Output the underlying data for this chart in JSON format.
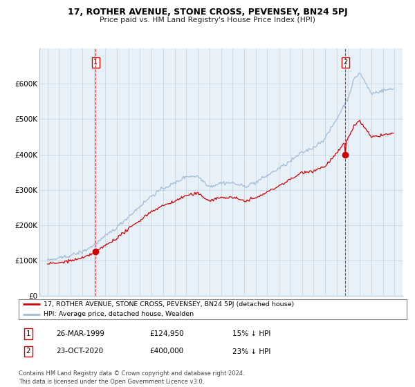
{
  "title": "17, ROTHER AVENUE, STONE CROSS, PEVENSEY, BN24 5PJ",
  "subtitle": "Price paid vs. HM Land Registry's House Price Index (HPI)",
  "legend_line1": "17, ROTHER AVENUE, STONE CROSS, PEVENSEY, BN24 5PJ (detached house)",
  "legend_line2": "HPI: Average price, detached house, Wealden",
  "sale1_label": "1",
  "sale1_date": "26-MAR-1999",
  "sale1_price": "£124,950",
  "sale1_hpi": "15% ↓ HPI",
  "sale2_label": "2",
  "sale2_date": "23-OCT-2020",
  "sale2_price": "£400,000",
  "sale2_hpi": "23% ↓ HPI",
  "footnote": "Contains HM Land Registry data © Crown copyright and database right 2024.\nThis data is licensed under the Open Government Licence v3.0.",
  "hpi_color": "#a0bcd8",
  "price_color": "#cc0000",
  "marker_color": "#cc0000",
  "background_color": "#ffffff",
  "plot_bg_color": "#e8f0f8",
  "grid_color": "#b0c4d8",
  "ylim": [
    0,
    700000
  ],
  "yticks": [
    0,
    100000,
    200000,
    300000,
    400000,
    500000,
    600000
  ],
  "ytick_labels": [
    "£0",
    "£100K",
    "£200K",
    "£300K",
    "£400K",
    "£500K",
    "£600K"
  ],
  "year_start": 1995,
  "year_end": 2025,
  "sale1_year": 1999.21,
  "sale1_price_val": 124950,
  "sale2_year": 2020.79,
  "sale2_price_val": 400000
}
